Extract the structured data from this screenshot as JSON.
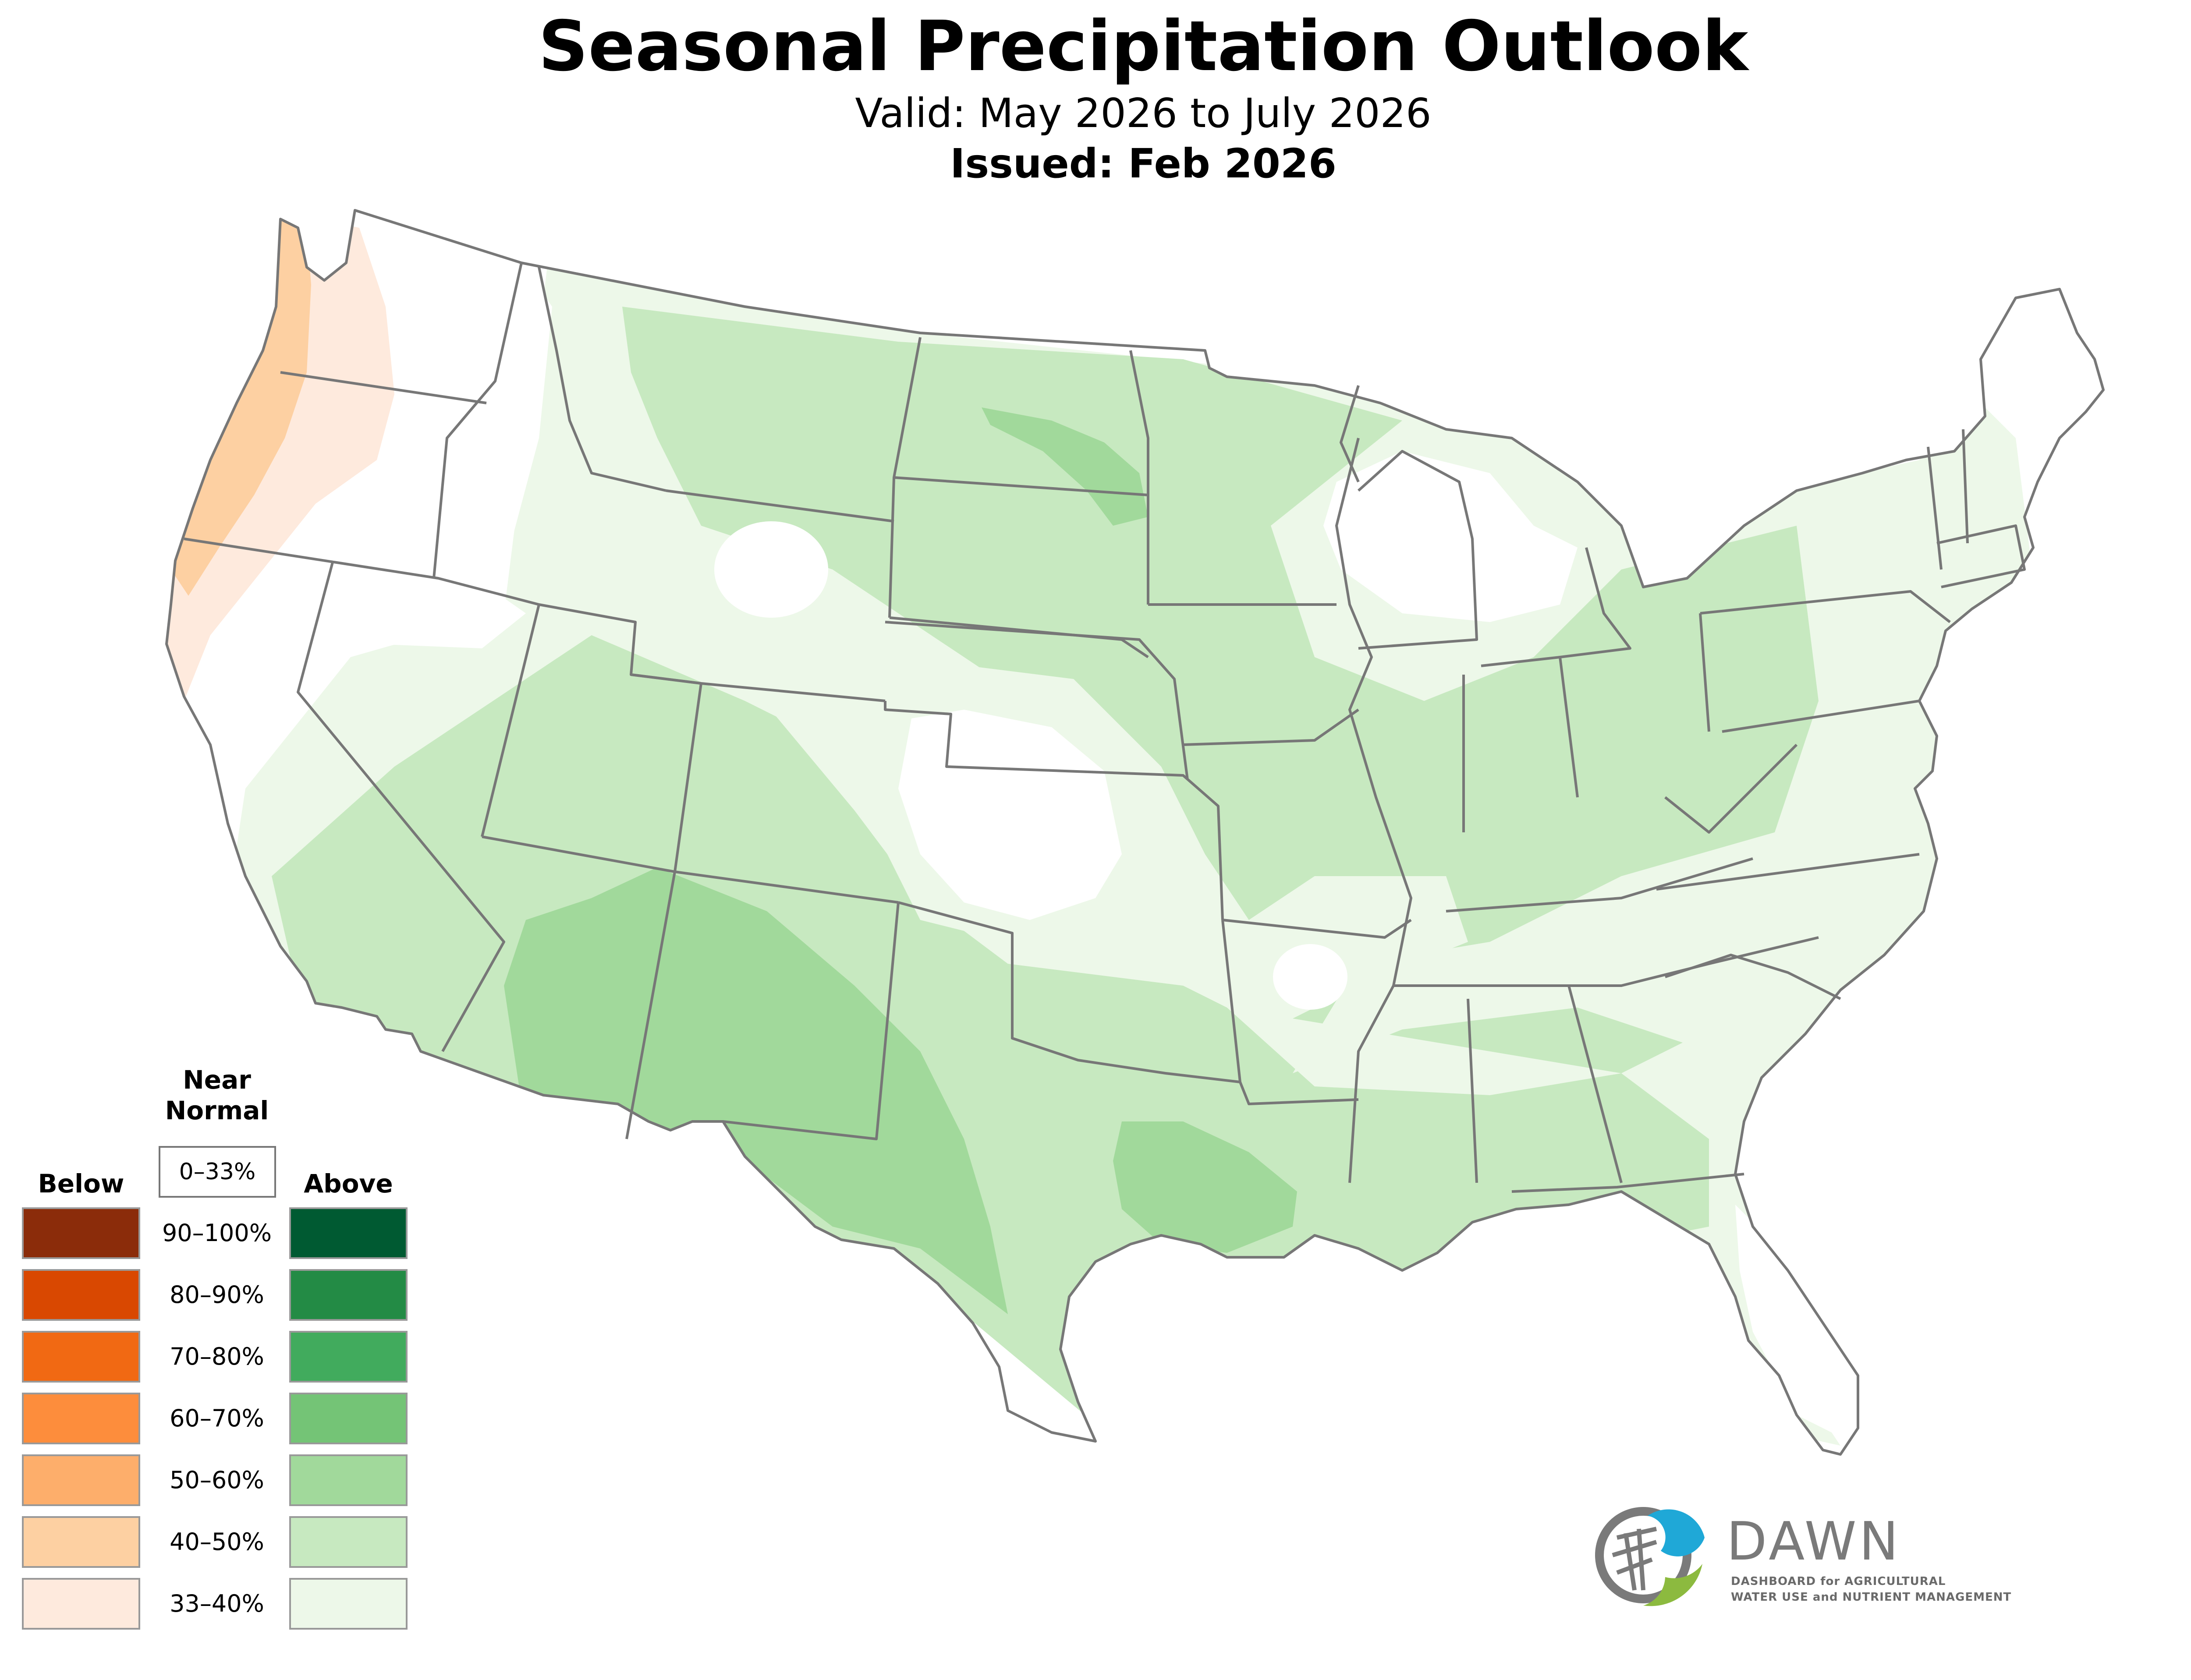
{
  "header": {
    "title": "Seasonal Precipitation Outlook",
    "valid": "Valid: May 2026 to July 2026",
    "issued": "Issued: Feb 2026"
  },
  "legend": {
    "below_label": "Below",
    "above_label": "Above",
    "near_normal_label_line1": "Near",
    "near_normal_label_line2": "Normal",
    "near_normal_range": "0–33%",
    "ranges": [
      "90–100%",
      "80–90%",
      "70–80%",
      "60–70%",
      "50–60%",
      "40–50%",
      "33–40%"
    ],
    "below_colors": [
      "#8b2c0a",
      "#d94801",
      "#f16913",
      "#fd8d3c",
      "#fdae6b",
      "#fdd0a2",
      "#feeadd"
    ],
    "above_colors": [
      "#005a32",
      "#238b45",
      "#41ab5d",
      "#74c476",
      "#a1d99b",
      "#c7e9c0",
      "#edf8e9"
    ]
  },
  "map": {
    "region": "contiguous-united-states",
    "boundary_color": "#777777",
    "outlook_categories": [
      {
        "category": "Below",
        "range": "40–50%",
        "color": "#fdd0a2",
        "area": "northern California and Oregon coast"
      },
      {
        "category": "Below",
        "range": "33–40%",
        "color": "#feeadd",
        "area": "Pacific Northwest coast"
      },
      {
        "category": "Above",
        "range": "33–40%",
        "color": "#edf8e9",
        "area": "broad interior, Great Lakes, East"
      },
      {
        "category": "Above",
        "range": "40–50%",
        "color": "#c7e9c0",
        "area": "Southwest, Plains, Midwest, South"
      },
      {
        "category": "Above",
        "range": "50–60%",
        "color": "#a1d99b",
        "area": "Arizona, New Mexico, West Texas, East Texas, North Dakota"
      }
    ]
  },
  "logo": {
    "name": "DAWN",
    "tagline_line1": "DASHBOARD for AGRICULTURAL",
    "tagline_line2": "WATER USE and NUTRIENT MANAGEMENT",
    "colors": {
      "blue": "#1fa8d7",
      "green": "#8cba3f",
      "gray": "#7a7a7a"
    }
  }
}
